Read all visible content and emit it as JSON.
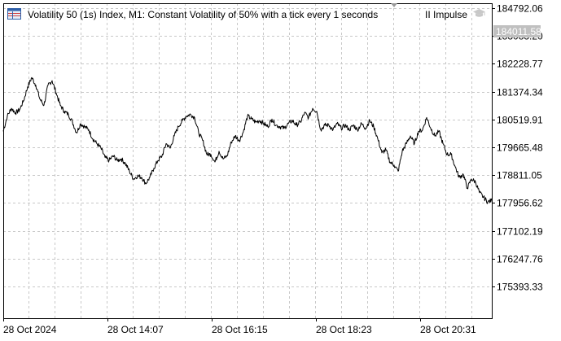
{
  "window": {
    "symbol_title": "Volatility 50 (1s) Index, M1:  Constant Volatility of 50% with a tick every 1 seconds",
    "indicator_label": "II Impulse",
    "icons": {
      "symbol": "table-icon",
      "indicator": "graduation-cap-icon",
      "marker": "triangle-down-icon"
    }
  },
  "price_scale": {
    "labels": [
      "184792.06",
      "183083.20",
      "182228.77",
      "181374.34",
      "180519.91",
      "179665.48",
      "178811.05",
      "177956.62",
      "177102.19",
      "176247.76",
      "175393.33"
    ],
    "current_price_label": "184011.58"
  },
  "time_scale": {
    "labels": [
      "28 Oct 2024",
      "28 Oct 14:07",
      "28 Oct 16:15",
      "28 Oct 18:23",
      "28 Oct 20:31"
    ]
  },
  "colors": {
    "background": "#ffffff",
    "grid": "#c8c8c8",
    "price_line": "#000000",
    "current_price_tag": "#c0c0c0",
    "axis": "#000000"
  },
  "chart_data": {
    "type": "line",
    "title": "",
    "xlabel": "",
    "ylabel": "",
    "grid": true,
    "x_start": "28 Oct 2024",
    "ylim": [
      174966,
      185219
    ],
    "x": [
      0,
      5,
      10,
      15,
      20,
      25,
      30,
      35,
      40,
      45,
      50,
      55,
      60,
      65,
      70,
      75,
      80,
      85,
      90,
      95,
      100,
      105,
      110,
      115,
      120,
      125,
      130,
      135,
      140,
      145,
      150,
      155,
      160,
      165,
      170,
      175,
      180,
      185,
      190,
      195,
      200,
      205,
      210,
      215,
      220,
      225,
      230,
      235,
      240,
      245,
      250,
      255,
      260,
      265,
      270,
      275,
      280,
      285,
      290,
      295,
      300,
      305,
      310,
      315,
      320,
      325,
      330,
      335,
      340,
      345,
      350,
      355,
      360,
      365,
      370,
      375,
      380,
      385,
      390,
      395,
      400,
      405,
      410,
      415,
      420,
      425,
      430,
      435,
      440,
      445,
      450,
      455,
      460,
      465,
      470,
      475,
      480,
      485,
      490,
      495,
      500,
      505,
      510,
      515,
      520,
      525,
      530,
      535,
      540,
      545,
      550,
      555,
      560,
      565,
      570,
      575,
      580,
      585,
      590,
      595,
      600
    ],
    "values": [
      181050,
      181550,
      181800,
      181650,
      181750,
      182050,
      182500,
      182800,
      182550,
      182100,
      181900,
      182550,
      182700,
      182300,
      181900,
      181700,
      181600,
      181350,
      181000,
      181300,
      181200,
      181100,
      180800,
      180650,
      180500,
      180200,
      180100,
      180250,
      180100,
      180150,
      180000,
      179750,
      179500,
      179600,
      179550,
      179350,
      179550,
      179850,
      180100,
      180250,
      180650,
      180500,
      180900,
      181200,
      181400,
      181550,
      181600,
      181500,
      181000,
      180750,
      180300,
      180300,
      180050,
      180400,
      180150,
      180250,
      180700,
      180900,
      180750,
      181050,
      181550,
      181450,
      181350,
      181400,
      181300,
      181200,
      181450,
      181250,
      181200,
      181150,
      181300,
      181400,
      181250,
      181350,
      181650,
      181500,
      181800,
      181700,
      181100,
      181250,
      181250,
      181100,
      181300,
      181150,
      181250,
      181100,
      181250,
      181100,
      181300,
      181150,
      181400,
      181200,
      180800,
      180350,
      180450,
      180050,
      179950,
      179750,
      180400,
      180650,
      180900,
      180650,
      181050,
      181100,
      181500,
      181150,
      180900,
      181050,
      180650,
      180300,
      180300,
      179900,
      179550,
      179650,
      179200,
      179500,
      179400,
      179050,
      178900,
      178750,
      178800
    ]
  }
}
